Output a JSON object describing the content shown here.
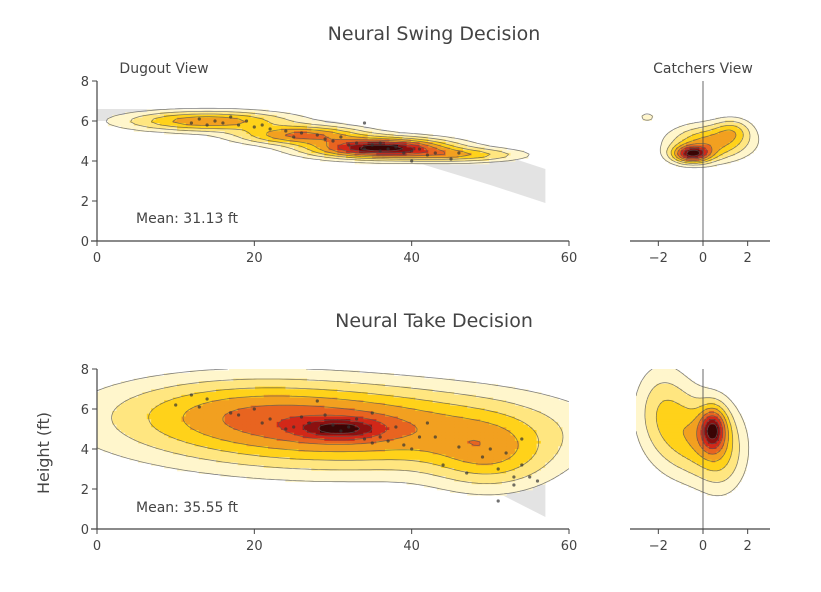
{
  "colors": {
    "zone_band": "#d9d9d9",
    "density_scale": [
      "#fff6cc",
      "#ffe680",
      "#ffd21a",
      "#f2a020",
      "#e86420",
      "#d22818",
      "#8c1010",
      "#3a0505"
    ],
    "contour_line": "#555555",
    "pitch_point": "#333333",
    "axis_line": "#444444"
  },
  "y_axis_label": "Height (ft)",
  "chart_data": [
    {
      "type": "contour",
      "panel": "Neural Swing Decision — Dugout View",
      "title": "Neural Swing Decision",
      "subtitle": "Dugout View",
      "annotation": "Mean: 31.13 ft",
      "xlim": [
        0,
        60
      ],
      "ylim": [
        0,
        8
      ],
      "x_ticks": [
        0,
        20,
        40,
        60
      ],
      "y_ticks": [
        0,
        2,
        4,
        6,
        8
      ],
      "zone_band": {
        "x": [
          0,
          10,
          20,
          30,
          40,
          50,
          57
        ],
        "upper": [
          6.6,
          6.6,
          6.4,
          6.0,
          5.3,
          4.5,
          3.6
        ],
        "lower": [
          6.0,
          6.0,
          5.5,
          4.9,
          4.0,
          2.8,
          1.9
        ]
      },
      "density": [
        {
          "x": 14,
          "y": 6.0,
          "sx": 6.5,
          "sy": 0.32,
          "w": 0.5
        },
        {
          "x": 26,
          "y": 5.3,
          "sx": 5.0,
          "sy": 0.3,
          "w": 0.55
        },
        {
          "x": 36,
          "y": 4.65,
          "sx": 5.5,
          "sy": 0.32,
          "w": 1.0
        },
        {
          "x": 46,
          "y": 4.3,
          "sx": 5.0,
          "sy": 0.22,
          "w": 0.35
        }
      ],
      "points": [
        [
          12,
          5.9
        ],
        [
          13,
          6.1
        ],
        [
          14,
          5.8
        ],
        [
          15,
          6.0
        ],
        [
          16,
          5.9
        ],
        [
          17,
          6.2
        ],
        [
          18,
          5.8
        ],
        [
          19,
          6.0
        ],
        [
          20,
          5.7
        ],
        [
          21,
          5.8
        ],
        [
          22,
          5.6
        ],
        [
          24,
          5.5
        ],
        [
          25,
          5.2
        ],
        [
          26,
          5.4
        ],
        [
          28,
          5.3
        ],
        [
          29,
          5.1
        ],
        [
          30,
          5.0
        ],
        [
          31,
          5.2
        ],
        [
          32,
          4.8
        ],
        [
          33,
          4.9
        ],
        [
          34,
          4.6
        ],
        [
          34,
          5.9
        ],
        [
          35,
          4.8
        ],
        [
          36,
          4.5
        ],
        [
          36,
          4.9
        ],
        [
          37,
          4.6
        ],
        [
          38,
          4.7
        ],
        [
          39,
          4.4
        ],
        [
          40,
          4.5
        ],
        [
          40,
          4.0
        ],
        [
          41,
          4.6
        ],
        [
          42,
          4.3
        ],
        [
          43,
          4.4
        ],
        [
          45,
          4.1
        ],
        [
          46,
          4.4
        ]
      ]
    },
    {
      "type": "contour",
      "panel": "Neural Swing Decision — Catchers View",
      "subtitle": "Catchers View",
      "xlim": [
        -3,
        3
      ],
      "ylim": [
        0,
        8
      ],
      "x_ticks": [
        -2,
        0,
        2
      ],
      "density": [
        {
          "x": -0.5,
          "y": 4.35,
          "sx": 0.55,
          "sy": 0.28,
          "w": 1.0
        },
        {
          "x": 0.3,
          "y": 4.9,
          "sx": 1.1,
          "sy": 0.55,
          "w": 0.55
        },
        {
          "x": 1.3,
          "y": 5.5,
          "sx": 0.55,
          "sy": 0.4,
          "w": 0.3
        },
        {
          "x": -2.5,
          "y": 6.2,
          "sx": 0.3,
          "sy": 0.2,
          "w": 0.12
        }
      ]
    },
    {
      "type": "contour",
      "panel": "Neural Take Decision — Dugout View",
      "title": "Neural Take Decision",
      "annotation": "Mean: 35.55 ft",
      "ylabel": "Height (ft)",
      "xlim": [
        0,
        60
      ],
      "ylim": [
        0,
        8
      ],
      "x_ticks": [
        0,
        20,
        40,
        60
      ],
      "y_ticks": [
        0,
        2,
        4,
        6,
        8
      ],
      "zone_band": {
        "x": [
          0,
          10,
          20,
          30,
          40,
          50,
          57
        ],
        "upper": [
          6.6,
          6.6,
          6.4,
          6.0,
          5.3,
          4.0,
          2.6
        ],
        "lower": [
          6.0,
          6.0,
          5.5,
          4.9,
          4.0,
          2.0,
          0.6
        ]
      },
      "density": [
        {
          "x": 32,
          "y": 5.0,
          "sx": 16,
          "sy": 1.3,
          "w": 1.0
        },
        {
          "x": 18,
          "y": 6.0,
          "sx": 11,
          "sy": 1.1,
          "w": 0.45
        },
        {
          "x": 50,
          "y": 3.7,
          "sx": 5,
          "sy": 1.1,
          "w": 0.55
        },
        {
          "x": 31,
          "y": 5.0,
          "sx": 3.5,
          "sy": 0.35,
          "w": 0.7
        }
      ],
      "points": [
        [
          10,
          6.2
        ],
        [
          12,
          6.7
        ],
        [
          13,
          6.1
        ],
        [
          14,
          6.5
        ],
        [
          17,
          5.8
        ],
        [
          18,
          5.7
        ],
        [
          20,
          6.0
        ],
        [
          21,
          5.3
        ],
        [
          22,
          5.5
        ],
        [
          24,
          5.0
        ],
        [
          25,
          5.1
        ],
        [
          26,
          5.6
        ],
        [
          27,
          5.3
        ],
        [
          28,
          6.4
        ],
        [
          29,
          5.7
        ],
        [
          30,
          5.2
        ],
        [
          31,
          4.9
        ],
        [
          32,
          5.1
        ],
        [
          33,
          5.5
        ],
        [
          34,
          4.5
        ],
        [
          35,
          4.3
        ],
        [
          35,
          5.8
        ],
        [
          36,
          4.6
        ],
        [
          37,
          4.4
        ],
        [
          38,
          5.1
        ],
        [
          39,
          4.2
        ],
        [
          40,
          4.0
        ],
        [
          41,
          4.6
        ],
        [
          42,
          5.3
        ],
        [
          43,
          4.6
        ],
        [
          44,
          3.2
        ],
        [
          46,
          4.1
        ],
        [
          47,
          2.8
        ],
        [
          49,
          3.6
        ],
        [
          50,
          4.0
        ],
        [
          51,
          3.0
        ],
        [
          52,
          3.8
        ],
        [
          53,
          2.6
        ],
        [
          53,
          2.2
        ],
        [
          54,
          3.2
        ],
        [
          54,
          4.5
        ],
        [
          55,
          2.6
        ],
        [
          56,
          2.4
        ],
        [
          51,
          1.4
        ]
      ]
    },
    {
      "type": "contour",
      "panel": "Neural Take Decision — Catchers View",
      "xlim": [
        -3,
        3
      ],
      "ylim": [
        0,
        8
      ],
      "x_ticks": [
        -2,
        0,
        2
      ],
      "density": [
        {
          "x": 0.45,
          "y": 5.0,
          "sx": 0.4,
          "sy": 0.7,
          "w": 1.0
        },
        {
          "x": -0.3,
          "y": 4.6,
          "sx": 1.1,
          "sy": 1.3,
          "w": 0.55
        },
        {
          "x": -1.8,
          "y": 6.0,
          "sx": 0.8,
          "sy": 1.4,
          "w": 0.35
        },
        {
          "x": 0.8,
          "y": 3.6,
          "sx": 0.7,
          "sy": 1.2,
          "w": 0.3
        }
      ]
    }
  ]
}
